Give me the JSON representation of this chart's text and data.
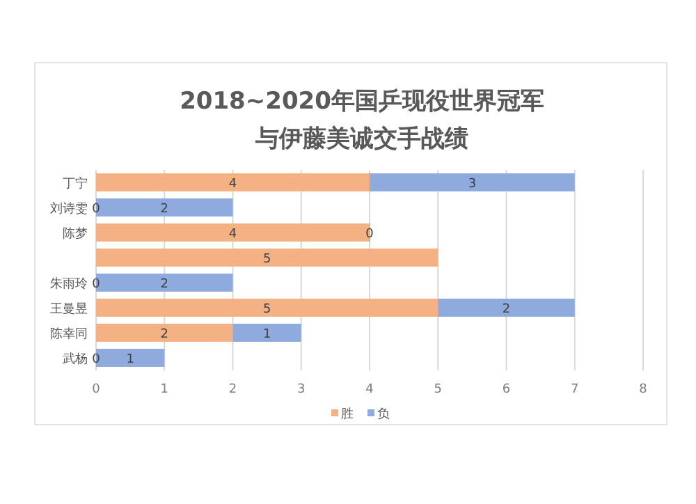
{
  "chart_data": {
    "type": "bar",
    "orientation": "horizontal",
    "stacked": true,
    "title": "2018~2020年国乒现役世界冠军与伊藤美诚交手战绩",
    "categories": [
      "丁宁",
      "刘诗雯",
      "陈梦",
      null,
      "朱雨玲",
      "王曼昱",
      "陈幸同",
      "武杨"
    ],
    "series": [
      {
        "name": "胜",
        "color": "#f4b183",
        "values": [
          4,
          0,
          4,
          5,
          0,
          5,
          2,
          0
        ]
      },
      {
        "name": "负",
        "color": "#8faadc",
        "values": [
          3,
          2,
          0,
          null,
          2,
          2,
          1,
          1
        ]
      }
    ],
    "xlim": [
      0,
      8
    ],
    "xticks": [
      0,
      1,
      2,
      3,
      4,
      5,
      6,
      7,
      8
    ],
    "grid": "x",
    "data_labels": true,
    "legend": "bottom"
  }
}
